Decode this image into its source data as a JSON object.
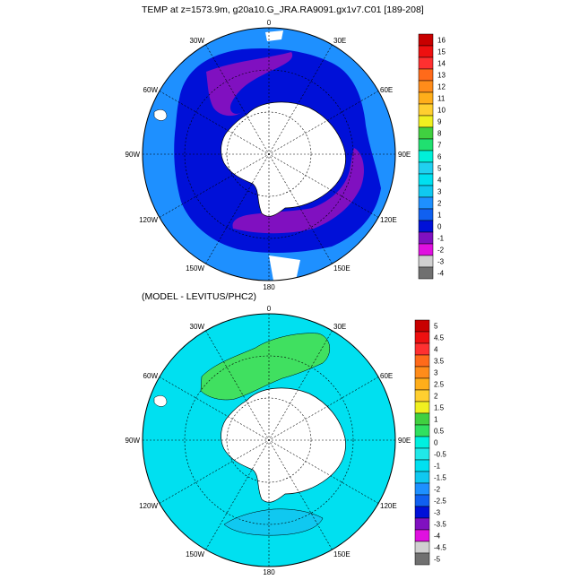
{
  "top_panel": {
    "title": "TEMP at z=1573.9m, g20a10.G_JRA.RA9091.gx1v7.C01 [189-208]",
    "colorbar": {
      "labels": [
        "16",
        "15",
        "14",
        "13",
        "12",
        "11",
        "10",
        "9",
        "8",
        "7",
        "6",
        "5",
        "4",
        "3",
        "2",
        "1",
        "0",
        "-1",
        "-2",
        "-3",
        "-4"
      ],
      "colors": [
        "#c80000",
        "#ee1010",
        "#ff3030",
        "#ff6a1a",
        "#ff8c1a",
        "#ffae1a",
        "#ffcf30",
        "#f0f020",
        "#40d040",
        "#20e070",
        "#00f0d8",
        "#20d0f0",
        "#00e0f0",
        "#10c8f0",
        "#1e90ff",
        "#1060f0",
        "#0010d8",
        "#8010c0",
        "#e010e0",
        "#d0d0d0",
        "#707070"
      ]
    }
  },
  "bottom_panel": {
    "title": "(MODEL - LEVITUS/PHC2)",
    "colorbar": {
      "labels": [
        "5",
        "4.5",
        "4",
        "3.5",
        "3",
        "2.5",
        "2",
        "1.5",
        "1",
        "0.5",
        "0",
        "-0.5",
        "-1",
        "-1.5",
        "-2",
        "-2.5",
        "-3",
        "-3.5",
        "-4",
        "-4.5",
        "-5"
      ],
      "colors": [
        "#c80000",
        "#ee1010",
        "#ff3030",
        "#ff6a1a",
        "#ff8c1a",
        "#ffae1a",
        "#ffcf30",
        "#f0f020",
        "#40d040",
        "#30e060",
        "#00f0e0",
        "#20e8e8",
        "#00e0f0",
        "#10c8f0",
        "#1e90ff",
        "#1060f0",
        "#0010d8",
        "#8010c0",
        "#e010e0",
        "#d0d0d0",
        "#707070"
      ]
    }
  },
  "longitude_labels": {
    "lon0": "0",
    "lon30e": "30E",
    "lon60e": "60E",
    "lon90e": "90E",
    "lon120e": "120E",
    "lon150e": "150E",
    "lon180": "180",
    "lon150w": "150W",
    "lon120w": "120W",
    "lon90w": "90W",
    "lon60w": "60W",
    "lon30w": "30W"
  },
  "map_colors": {
    "top_ocean": "#1e90ff",
    "top_deep": "#0010d8",
    "top_cold": "#8010c0",
    "bottom_ocean": "#00e0f0",
    "bottom_pos": "#40e060",
    "bottom_neg": "#10c8f0",
    "land": "#ffffff"
  }
}
